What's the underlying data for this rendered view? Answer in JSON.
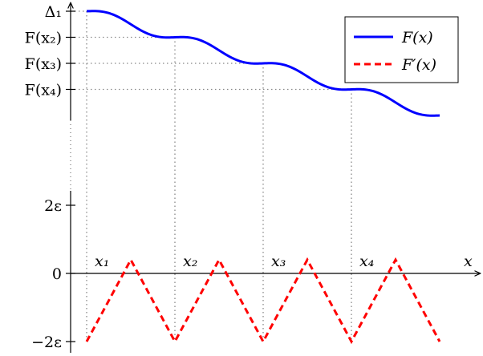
{
  "chart_data": [
    {
      "type": "line",
      "title": "",
      "xlabel": "",
      "ylabel": "",
      "x_range": [
        0,
        4
      ],
      "y_range": [
        0.0,
        1.0
      ],
      "y_ticks": [
        {
          "label": "Δ₁",
          "value": 1.0
        },
        {
          "label": "F(x₂)",
          "value": 0.75
        },
        {
          "label": "F(x₃)",
          "value": 0.5
        },
        {
          "label": "F(x₄)",
          "value": 0.25
        }
      ],
      "x_marks": [
        0,
        1,
        2,
        3
      ],
      "series": [
        {
          "name": "F(x)",
          "color": "#0000ff",
          "style": "solid",
          "x": [
            0,
            0.25,
            0.5,
            0.75,
            1,
            1.25,
            1.5,
            1.75,
            2,
            2.25,
            2.5,
            2.75,
            3,
            3.25,
            3.5,
            3.75,
            4
          ],
          "y": [
            1.0,
            0.888,
            0.875,
            0.862,
            0.75,
            0.638,
            0.625,
            0.612,
            0.5,
            0.388,
            0.375,
            0.362,
            0.25,
            0.138,
            0.125,
            0.112,
            0.0
          ]
        }
      ],
      "legend": {
        "position": "top-right",
        "entries": [
          "F(x)",
          "F′(x)"
        ]
      },
      "guides": "dotted lines from each marked x to the curve and to the y-axis"
    },
    {
      "type": "line",
      "title": "",
      "xlabel": "x",
      "ylabel": "",
      "x_range": [
        0,
        4
      ],
      "y_range": [
        -2,
        2
      ],
      "y_ticks": [
        {
          "label": "2ε",
          "value": 2
        },
        {
          "label": "0",
          "value": 0
        },
        {
          "label": "−2ε",
          "value": -2
        }
      ],
      "x_tick_labels": [
        {
          "label": "x₁",
          "value": 0
        },
        {
          "label": "x₂",
          "value": 1
        },
        {
          "label": "x₃",
          "value": 2
        },
        {
          "label": "x₄",
          "value": 3
        }
      ],
      "series": [
        {
          "name": "F′(x)",
          "color": "#ff0000",
          "style": "dashed",
          "x": [
            0,
            0.5,
            1,
            1.5,
            2,
            2.5,
            3,
            3.5,
            4
          ],
          "y": [
            -2,
            0.4,
            -2,
            0.4,
            -2,
            0.4,
            -2,
            0.4,
            -2
          ]
        }
      ]
    }
  ]
}
